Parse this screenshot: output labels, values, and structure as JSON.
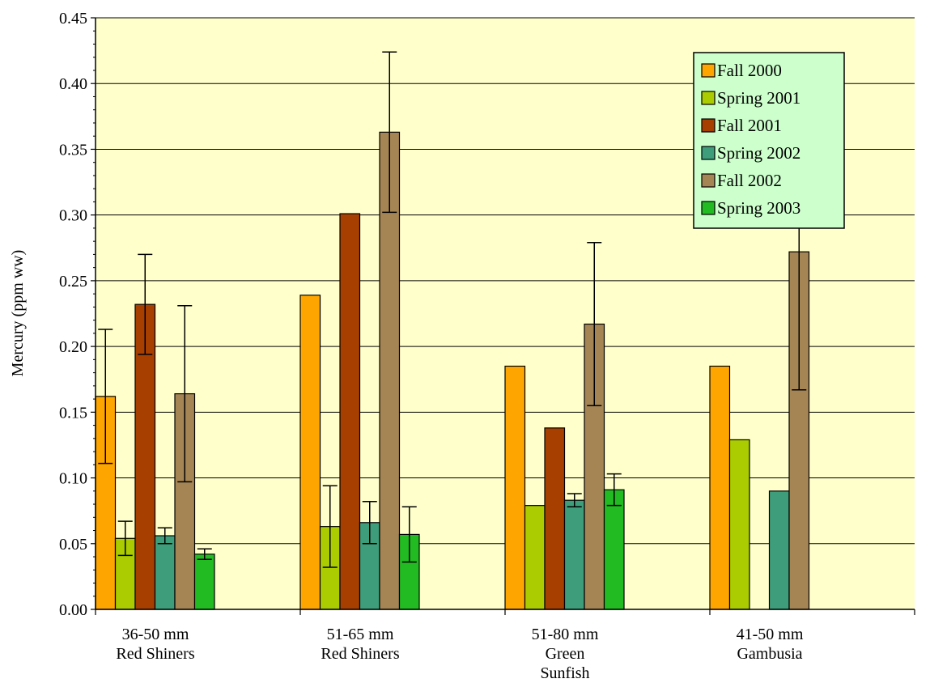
{
  "chart_data": {
    "type": "bar",
    "title": "",
    "xlabel": "",
    "ylabel": "Mercury (ppm ww)",
    "ylim": [
      0,
      0.45
    ],
    "y_ticks": [
      "0.00",
      "0.05",
      "0.10",
      "0.15",
      "0.20",
      "0.25",
      "0.30",
      "0.35",
      "0.40",
      "0.45"
    ],
    "grid": true,
    "legend_position": "top-right",
    "plot_background": "#FFFFCC",
    "categories": [
      [
        "36-50 mm",
        "Red Shiners"
      ],
      [
        "51-65 mm",
        "Red Shiners"
      ],
      [
        "51-80 mm",
        "Green",
        "Sunfish"
      ],
      [
        "41-50 mm",
        "Gambusia"
      ]
    ],
    "series": [
      {
        "name": "Fall 2000",
        "color": "#FFA500",
        "values": [
          0.162,
          0.239,
          0.185,
          0.185
        ],
        "errors": [
          0.051,
          null,
          null,
          null
        ]
      },
      {
        "name": "Spring 2001",
        "color": "#AACC00",
        "values": [
          0.054,
          0.063,
          0.079,
          0.129
        ],
        "errors": [
          0.013,
          0.031,
          null,
          null
        ]
      },
      {
        "name": "Fall 2001",
        "color": "#A63F00",
        "values": [
          0.232,
          0.301,
          0.138,
          null
        ],
        "errors": [
          0.038,
          null,
          null,
          null
        ]
      },
      {
        "name": "Spring 2002",
        "color": "#3E9E7C",
        "values": [
          0.056,
          0.066,
          0.083,
          0.09
        ],
        "errors": [
          0.006,
          0.016,
          0.005,
          null
        ]
      },
      {
        "name": "Fall 2002",
        "color": "#A58554",
        "values": [
          0.164,
          0.363,
          0.217,
          0.272
        ],
        "errors": [
          0.067,
          0.061,
          0.062,
          0.105
        ]
      },
      {
        "name": "Spring 2003",
        "color": "#22BB22",
        "values": [
          0.042,
          0.057,
          0.091,
          null
        ],
        "errors": [
          0.004,
          0.021,
          0.012,
          null
        ]
      }
    ]
  }
}
